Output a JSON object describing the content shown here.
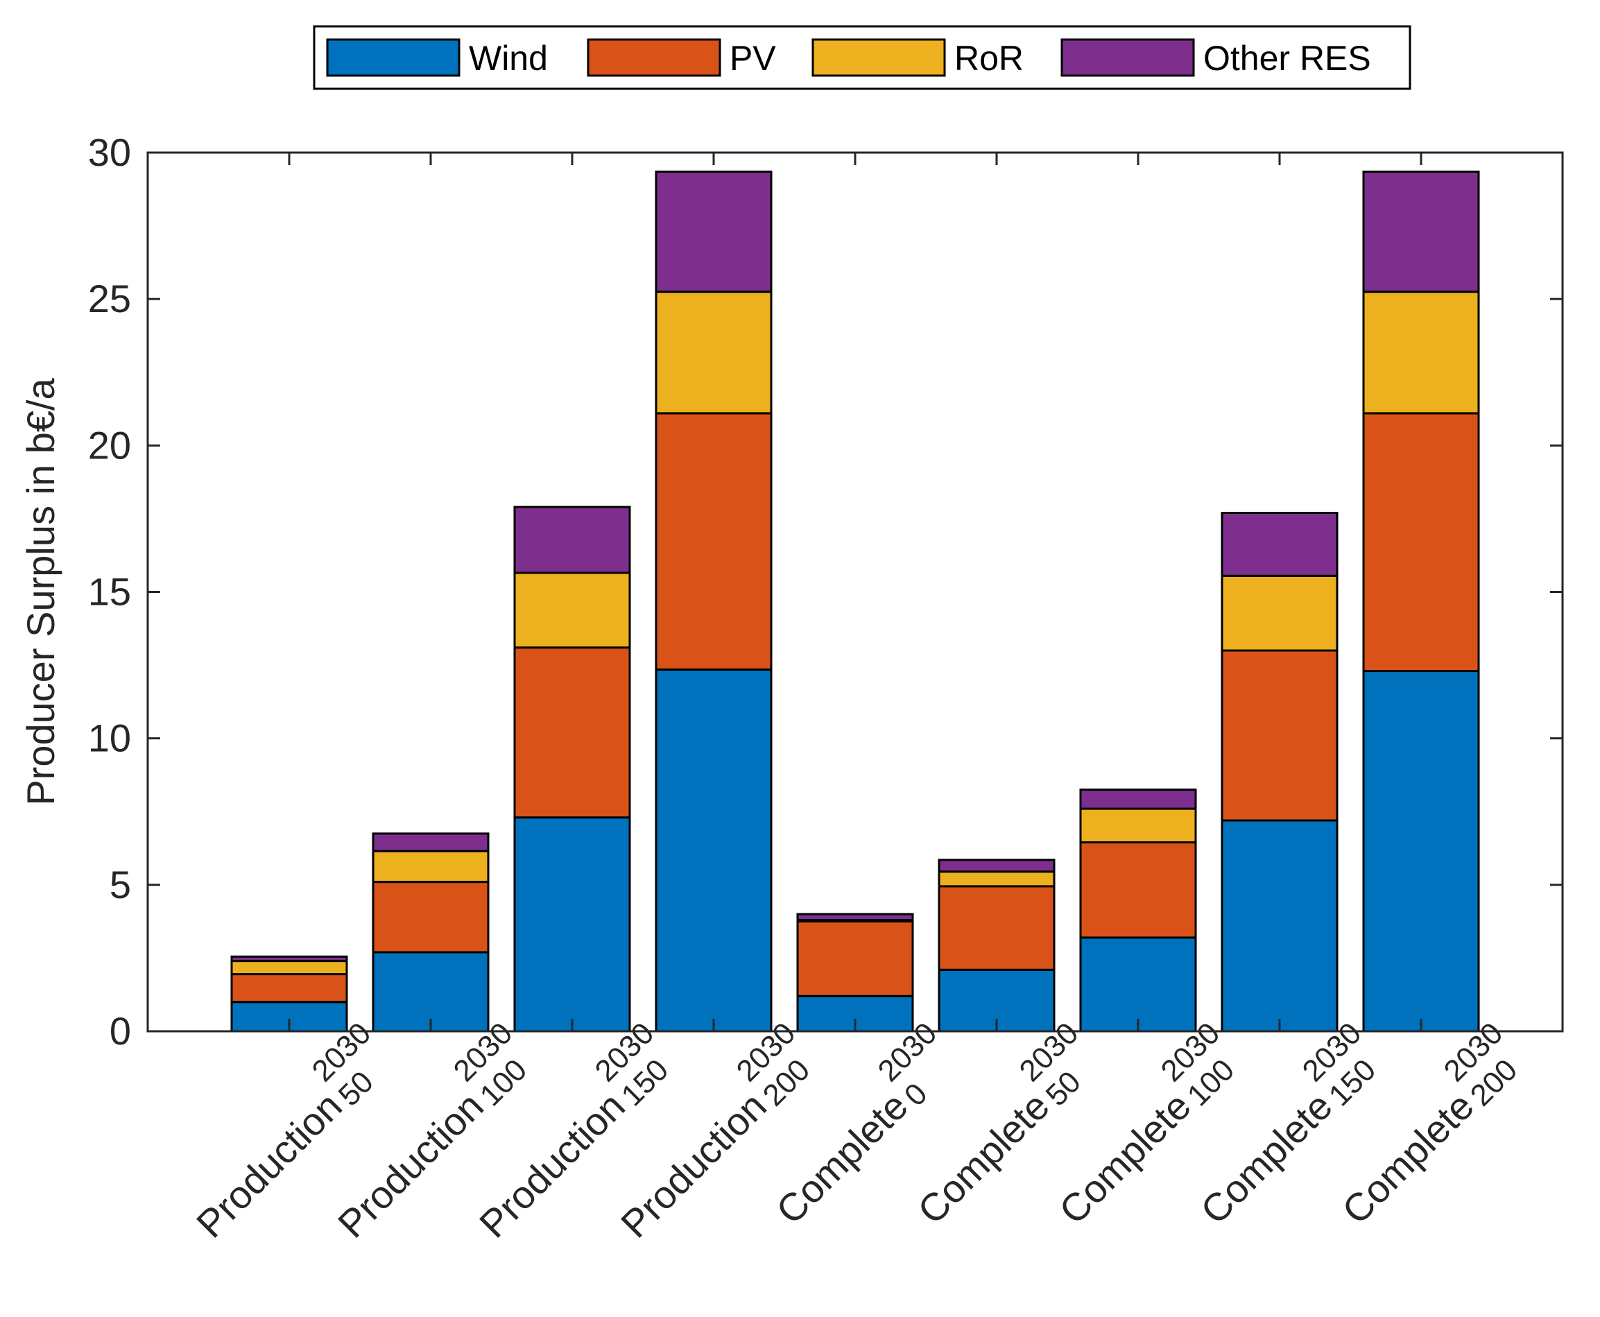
{
  "chart_data": {
    "type": "bar",
    "stacked": true,
    "title": "",
    "xlabel": "",
    "ylabel": "Producer Surplus in b€/a",
    "ylim": [
      0,
      30
    ],
    "yticks": [
      0,
      5,
      10,
      15,
      20,
      25,
      30
    ],
    "grid": false,
    "legend_position": "top-center",
    "categories": [
      {
        "main": "Production",
        "sup": "2030",
        "sub": "50"
      },
      {
        "main": "Production",
        "sup": "2030",
        "sub": "100"
      },
      {
        "main": "Production",
        "sup": "2030",
        "sub": "150"
      },
      {
        "main": "Production",
        "sup": "2030",
        "sub": "200"
      },
      {
        "main": "Complete",
        "sup": "2030",
        "sub": "0"
      },
      {
        "main": "Complete",
        "sup": "2030",
        "sub": "50"
      },
      {
        "main": "Complete",
        "sup": "2030",
        "sub": "100"
      },
      {
        "main": "Complete",
        "sup": "2030",
        "sub": "150"
      },
      {
        "main": "Complete",
        "sup": "2030",
        "sub": "200"
      }
    ],
    "series": [
      {
        "name": "Wind",
        "color": "#0072BD",
        "values": [
          1.0,
          2.7,
          7.3,
          12.35,
          1.2,
          2.1,
          3.2,
          7.2,
          12.3
        ]
      },
      {
        "name": "PV",
        "color": "#D95319",
        "values": [
          0.95,
          2.4,
          5.8,
          8.75,
          2.55,
          2.85,
          3.25,
          5.8,
          8.8
        ]
      },
      {
        "name": "RoR",
        "color": "#EDB120",
        "values": [
          0.45,
          1.05,
          2.55,
          4.15,
          0.05,
          0.5,
          1.15,
          2.55,
          4.15
        ]
      },
      {
        "name": "Other RES",
        "color": "#7E2F8E",
        "values": [
          0.15,
          0.6,
          2.25,
          4.1,
          0.2,
          0.4,
          0.65,
          2.15,
          4.1
        ]
      }
    ]
  }
}
